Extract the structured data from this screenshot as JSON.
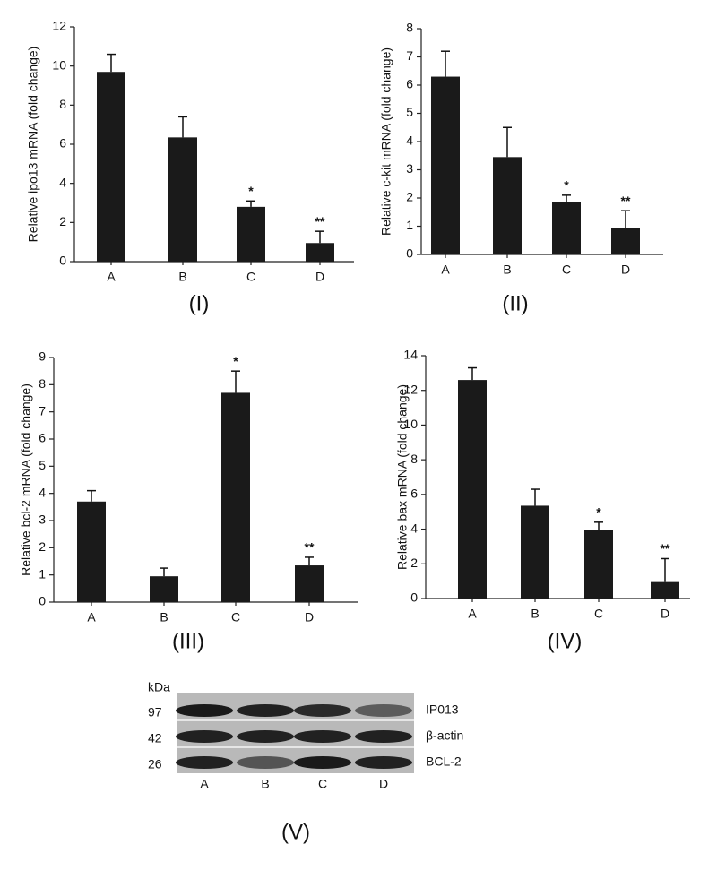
{
  "chart_data": [
    {
      "type": "bar",
      "label": "(I)",
      "y_label": "Relative ipo13 mRNA (fold change)",
      "color": "#1a1a1a",
      "categories": [
        "A",
        "B",
        "C",
        "D"
      ],
      "values": [
        9.7,
        6.35,
        2.8,
        0.95
      ],
      "errors": [
        0.9,
        1.05,
        0.3,
        0.6
      ],
      "annotations": [
        null,
        null,
        "*",
        "**"
      ],
      "ylim": [
        0,
        12
      ],
      "yticks": [
        0,
        2,
        4,
        6,
        8,
        10,
        12
      ]
    },
    {
      "type": "bar",
      "label": "(II)",
      "y_label": "Relative c-kit mRNA (fold change)",
      "color": "#1a1a1a",
      "categories": [
        "A",
        "B",
        "C",
        "D"
      ],
      "values": [
        6.3,
        3.45,
        1.85,
        0.95
      ],
      "errors": [
        0.9,
        1.05,
        0.25,
        0.6
      ],
      "annotations": [
        null,
        null,
        "*",
        "**"
      ],
      "ylim": [
        0,
        8
      ],
      "yticks": [
        0,
        1,
        2,
        3,
        4,
        5,
        6,
        7,
        8
      ]
    },
    {
      "type": "bar",
      "label": "(III)",
      "y_label": "Relative bcl-2 mRNA (fold change)",
      "color": "#1a1a1a",
      "categories": [
        "A",
        "B",
        "C",
        "D"
      ],
      "values": [
        3.7,
        0.95,
        7.7,
        1.35
      ],
      "errors": [
        0.4,
        0.3,
        0.8,
        0.3
      ],
      "annotations": [
        null,
        null,
        "*",
        "**"
      ],
      "ylim": [
        0,
        9
      ],
      "yticks": [
        0,
        1,
        2,
        3,
        4,
        5,
        6,
        7,
        8,
        9
      ]
    },
    {
      "type": "bar",
      "label": "(IV)",
      "y_label": "Relative bax mRNA (fold change)",
      "color": "#1a1a1a",
      "categories": [
        "A",
        "B",
        "C",
        "D"
      ],
      "values": [
        12.6,
        5.35,
        3.95,
        1.0
      ],
      "errors": [
        0.7,
        0.95,
        0.45,
        1.3
      ],
      "annotations": [
        null,
        null,
        "*",
        "**"
      ],
      "ylim": [
        0,
        14
      ],
      "yticks": [
        0,
        2,
        4,
        6,
        8,
        10,
        12,
        14
      ]
    }
  ],
  "blot": {
    "label": "(V)",
    "unit": "kDa",
    "markers": [
      "97",
      "42",
      "26"
    ],
    "bands": [
      "IP013",
      "β-actin",
      "BCL-2"
    ],
    "lanes": [
      "A",
      "B",
      "C",
      "D"
    ]
  }
}
